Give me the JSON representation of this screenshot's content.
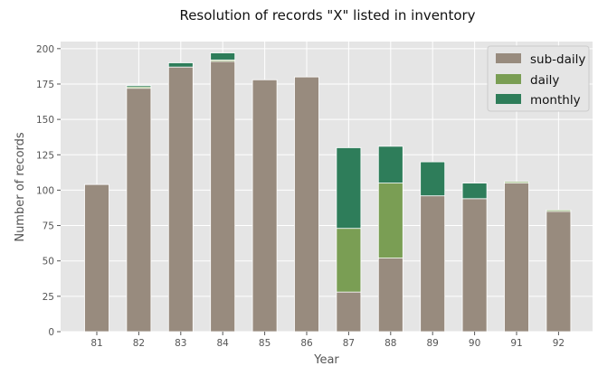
{
  "chart_data": {
    "type": "bar",
    "stacked": true,
    "title": "Resolution of records \"X\" listed in inventory",
    "xlabel": "Year",
    "ylabel": "Number of records",
    "categories": [
      "81",
      "82",
      "83",
      "84",
      "85",
      "86",
      "87",
      "88",
      "89",
      "90",
      "91",
      "92"
    ],
    "ylim": [
      0,
      205
    ],
    "yticks": [
      0,
      25,
      50,
      75,
      100,
      125,
      150,
      175,
      200
    ],
    "grid": true,
    "legend_position": "top-right",
    "series": [
      {
        "name": "sub-daily",
        "color": "#988b7e",
        "values": [
          104,
          172,
          187,
          191,
          178,
          180,
          28,
          52,
          96,
          94,
          105,
          85
        ]
      },
      {
        "name": "daily",
        "color": "#7a9e54",
        "values": [
          0,
          1,
          0,
          1,
          0,
          0,
          45,
          53,
          0,
          0,
          1,
          1
        ]
      },
      {
        "name": "monthly",
        "color": "#2e7d5a",
        "values": [
          0,
          1,
          3,
          5,
          0,
          0,
          57,
          26,
          24,
          11,
          0,
          0
        ]
      }
    ]
  }
}
